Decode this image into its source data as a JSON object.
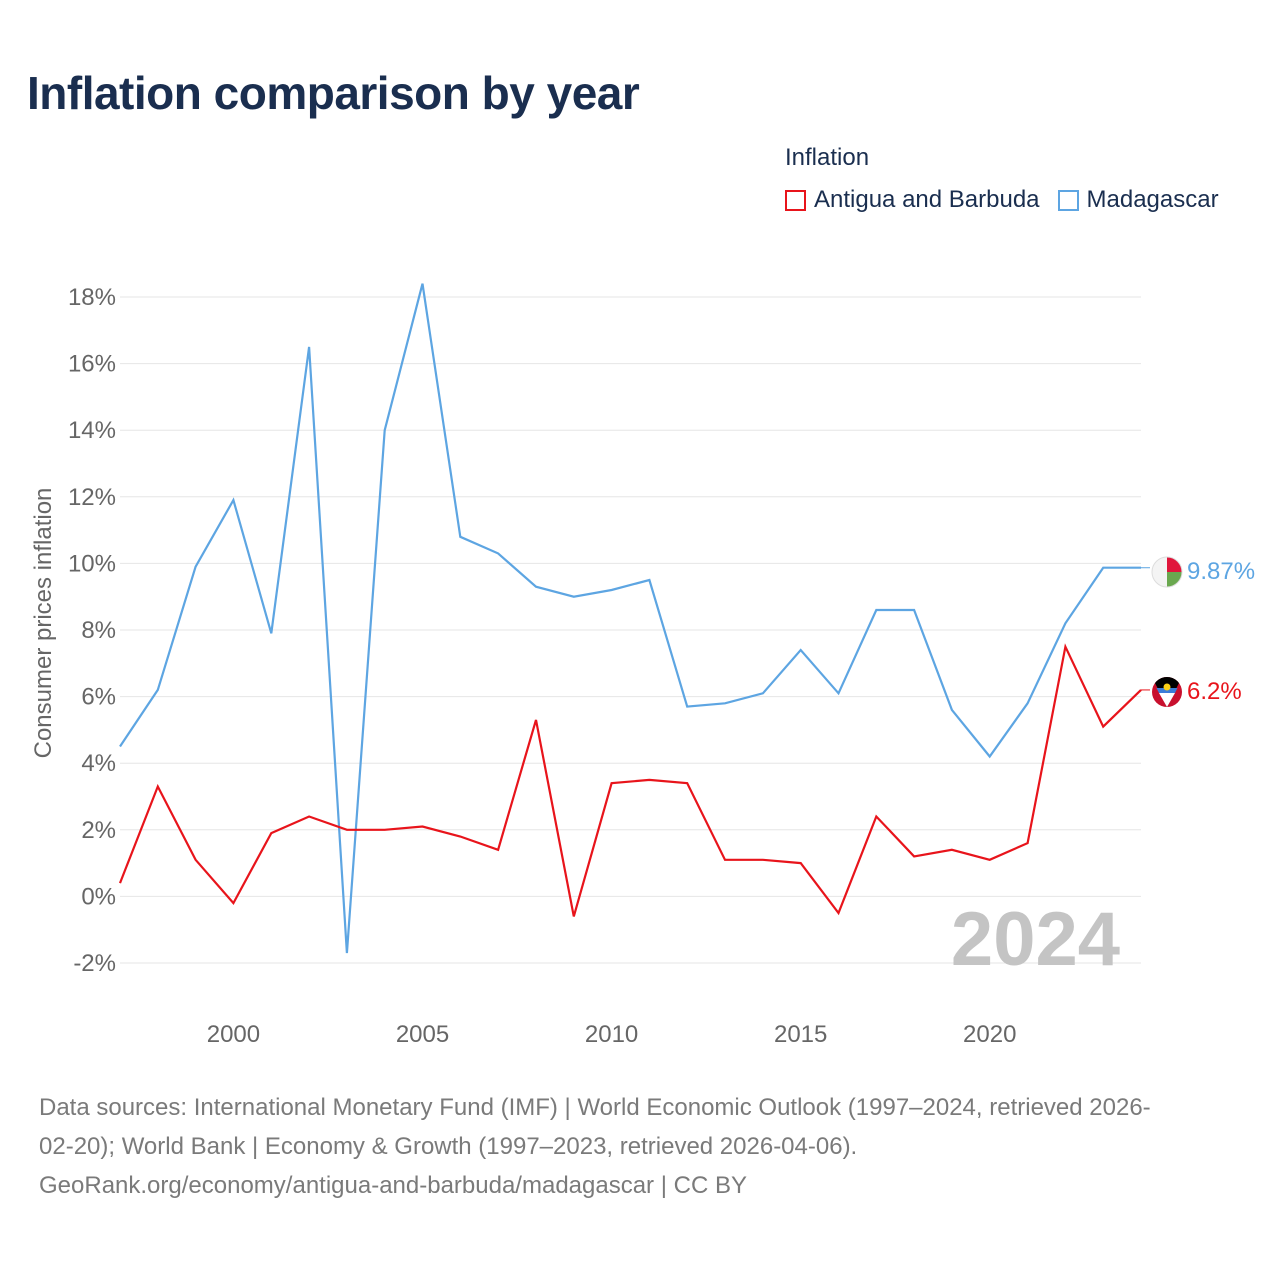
{
  "title": "Inflation comparison by year",
  "legend": {
    "title": "Inflation",
    "items": [
      {
        "label": "Antigua and Barbuda",
        "color": "#e8141b"
      },
      {
        "label": "Madagascar",
        "color": "#5da5e2"
      }
    ]
  },
  "footer": {
    "line1": "Data sources: International Monetary Fund (IMF) | World Economic Outlook (1997–2024, retrieved 2026-",
    "line2": "02-20); World Bank | Economy & Growth (1997–2023, retrieved 2026-04-06).",
    "line3": "GeoRank.org/economy/antigua-and-barbuda/madagascar | CC BY"
  },
  "chart_data": {
    "type": "line",
    "title": "Inflation comparison by year",
    "ylabel": "Consumer prices inflation",
    "xlabel": "",
    "year_label": "2024",
    "xlim": [
      1997,
      2024
    ],
    "ylim": [
      -2,
      18
    ],
    "x_ticks": [
      2000,
      2005,
      2010,
      2015,
      2020
    ],
    "y_ticks": [
      -2,
      0,
      2,
      4,
      6,
      8,
      10,
      12,
      14,
      16,
      18
    ],
    "x": [
      1997,
      1998,
      1999,
      2000,
      2001,
      2002,
      2003,
      2004,
      2005,
      2006,
      2007,
      2008,
      2009,
      2010,
      2011,
      2012,
      2013,
      2014,
      2015,
      2016,
      2017,
      2018,
      2019,
      2020,
      2021,
      2022,
      2023,
      2024
    ],
    "series": [
      {
        "name": "Madagascar",
        "color": "#5da5e2",
        "end_label": "9.87%",
        "values": [
          4.5,
          6.2,
          9.9,
          11.9,
          7.9,
          16.5,
          -1.7,
          14.0,
          18.4,
          10.8,
          10.3,
          9.3,
          9.0,
          9.2,
          9.5,
          5.7,
          5.8,
          6.1,
          7.4,
          6.1,
          8.6,
          8.6,
          5.6,
          4.2,
          5.8,
          8.2,
          9.87,
          9.87
        ]
      },
      {
        "name": "Antigua and Barbuda",
        "color": "#e8141b",
        "end_label": "6.2%",
        "values": [
          0.4,
          3.3,
          1.1,
          -0.2,
          1.9,
          2.4,
          2.0,
          2.0,
          2.1,
          1.8,
          1.4,
          5.3,
          -0.6,
          3.4,
          3.5,
          3.4,
          1.1,
          1.1,
          1.0,
          -0.5,
          2.4,
          1.2,
          1.4,
          1.1,
          1.6,
          7.5,
          5.1,
          6.2
        ]
      }
    ]
  }
}
